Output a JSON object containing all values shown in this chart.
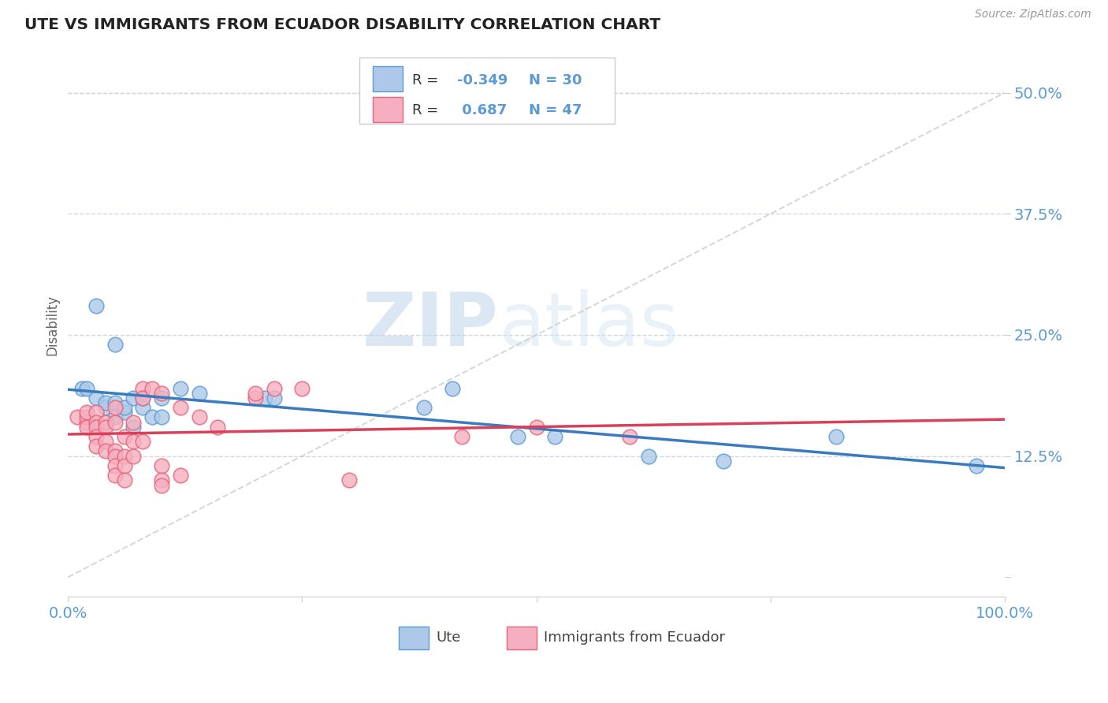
{
  "title": "UTE VS IMMIGRANTS FROM ECUADOR DISABILITY CORRELATION CHART",
  "source": "Source: ZipAtlas.com",
  "ylabel": "Disability",
  "xlabel": "",
  "xlim": [
    0.0,
    1.0
  ],
  "ylim": [
    -0.02,
    0.54
  ],
  "ytick_vals": [
    0.0,
    0.125,
    0.25,
    0.375,
    0.5
  ],
  "ytick_labels": [
    "",
    "12.5%",
    "25.0%",
    "37.5%",
    "50.0%"
  ],
  "xtick_vals": [
    0.0,
    0.25,
    0.5,
    0.75,
    1.0
  ],
  "xtick_labels": [
    "0.0%",
    "",
    "",
    "",
    "100.0%"
  ],
  "ute_R": -0.349,
  "ute_N": 30,
  "ecuador_R": 0.687,
  "ecuador_N": 47,
  "ute_fill_color": "#adc8e8",
  "ecuador_fill_color": "#f5afc0",
  "ute_edge_color": "#5b9bd5",
  "ecuador_edge_color": "#e8647a",
  "ute_line_color": "#3a7abf",
  "ecuador_line_color": "#d9405a",
  "ref_line_color": "#c8c8c8",
  "background_color": "#ffffff",
  "grid_color": "#d0d8e8",
  "tick_label_color": "#5b9bd5",
  "watermark_color": "#dce8f5",
  "legend_border_color": "#cccccc",
  "ute_scatter": [
    [
      0.015,
      0.195
    ],
    [
      0.03,
      0.28
    ],
    [
      0.05,
      0.24
    ],
    [
      0.02,
      0.195
    ],
    [
      0.03,
      0.185
    ],
    [
      0.04,
      0.175
    ],
    [
      0.04,
      0.18
    ],
    [
      0.05,
      0.18
    ],
    [
      0.05,
      0.165
    ],
    [
      0.06,
      0.17
    ],
    [
      0.06,
      0.175
    ],
    [
      0.07,
      0.155
    ],
    [
      0.07,
      0.185
    ],
    [
      0.08,
      0.175
    ],
    [
      0.08,
      0.185
    ],
    [
      0.09,
      0.165
    ],
    [
      0.1,
      0.185
    ],
    [
      0.1,
      0.165
    ],
    [
      0.12,
      0.195
    ],
    [
      0.14,
      0.19
    ],
    [
      0.21,
      0.185
    ],
    [
      0.22,
      0.185
    ],
    [
      0.38,
      0.175
    ],
    [
      0.41,
      0.195
    ],
    [
      0.48,
      0.145
    ],
    [
      0.52,
      0.145
    ],
    [
      0.62,
      0.125
    ],
    [
      0.7,
      0.12
    ],
    [
      0.82,
      0.145
    ],
    [
      0.97,
      0.115
    ]
  ],
  "ecuador_scatter": [
    [
      0.01,
      0.165
    ],
    [
      0.02,
      0.16
    ],
    [
      0.02,
      0.165
    ],
    [
      0.02,
      0.17
    ],
    [
      0.02,
      0.155
    ],
    [
      0.03,
      0.17
    ],
    [
      0.03,
      0.16
    ],
    [
      0.03,
      0.155
    ],
    [
      0.03,
      0.145
    ],
    [
      0.03,
      0.135
    ],
    [
      0.04,
      0.16
    ],
    [
      0.04,
      0.155
    ],
    [
      0.04,
      0.14
    ],
    [
      0.04,
      0.13
    ],
    [
      0.05,
      0.175
    ],
    [
      0.05,
      0.16
    ],
    [
      0.05,
      0.13
    ],
    [
      0.05,
      0.125
    ],
    [
      0.05,
      0.115
    ],
    [
      0.05,
      0.105
    ],
    [
      0.06,
      0.145
    ],
    [
      0.06,
      0.125
    ],
    [
      0.06,
      0.115
    ],
    [
      0.06,
      0.1
    ],
    [
      0.07,
      0.16
    ],
    [
      0.07,
      0.14
    ],
    [
      0.07,
      0.125
    ],
    [
      0.08,
      0.195
    ],
    [
      0.08,
      0.185
    ],
    [
      0.08,
      0.14
    ],
    [
      0.09,
      0.195
    ],
    [
      0.1,
      0.19
    ],
    [
      0.1,
      0.115
    ],
    [
      0.1,
      0.1
    ],
    [
      0.1,
      0.095
    ],
    [
      0.12,
      0.175
    ],
    [
      0.12,
      0.105
    ],
    [
      0.14,
      0.165
    ],
    [
      0.16,
      0.155
    ],
    [
      0.2,
      0.185
    ],
    [
      0.2,
      0.19
    ],
    [
      0.22,
      0.195
    ],
    [
      0.25,
      0.195
    ],
    [
      0.3,
      0.1
    ],
    [
      0.42,
      0.145
    ],
    [
      0.5,
      0.155
    ],
    [
      0.6,
      0.145
    ]
  ],
  "watermark_zip": "ZIP",
  "watermark_atlas": "atlas",
  "legend_box_color": "#ffffff"
}
